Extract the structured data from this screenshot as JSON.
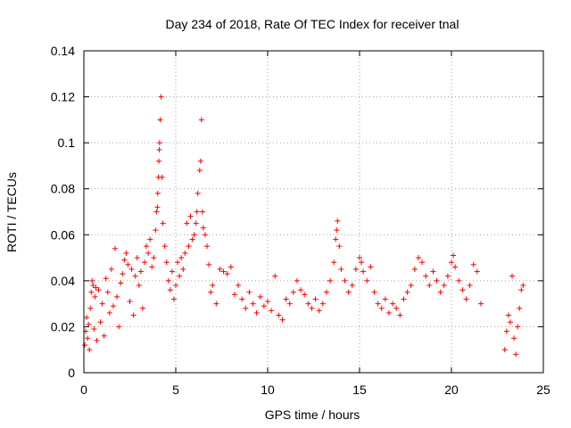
{
  "chart_data": {
    "type": "scatter",
    "title": "Day 234 of 2018, Rate Of TEC Index for receiver tnal",
    "xlabel": "GPS time / hours",
    "ylabel": "ROTI / TECUs",
    "xlim": [
      0,
      25
    ],
    "ylim": [
      0,
      0.14
    ],
    "grid": true,
    "xticks": [
      {
        "value": 0,
        "label": "0"
      },
      {
        "value": 5,
        "label": "5"
      },
      {
        "value": 10,
        "label": "10"
      },
      {
        "value": 15,
        "label": "15"
      },
      {
        "value": 20,
        "label": "20"
      },
      {
        "value": 25,
        "label": "25"
      }
    ],
    "yticks": [
      {
        "value": 0,
        "label": "0"
      },
      {
        "value": 0.02,
        "label": "0.02"
      },
      {
        "value": 0.04,
        "label": "0.04"
      },
      {
        "value": 0.06,
        "label": "0.06"
      },
      {
        "value": 0.08,
        "label": "0.08"
      },
      {
        "value": 0.1,
        "label": "0.1"
      },
      {
        "value": 0.12,
        "label": "0.12"
      },
      {
        "value": 0.14,
        "label": "0.14"
      }
    ],
    "series": [
      {
        "name": "ROTI",
        "marker": "plus",
        "color": "#ff0000",
        "points": [
          [
            0.05,
            0.012
          ],
          [
            0.1,
            0.018
          ],
          [
            0.15,
            0.024
          ],
          [
            0.2,
            0.015
          ],
          [
            0.25,
            0.021
          ],
          [
            0.3,
            0.01
          ],
          [
            0.35,
            0.028
          ],
          [
            0.4,
            0.035
          ],
          [
            0.45,
            0.04
          ],
          [
            0.5,
            0.038
          ],
          [
            0.55,
            0.019
          ],
          [
            0.6,
            0.033
          ],
          [
            0.65,
            0.037
          ],
          [
            0.7,
            0.014
          ],
          [
            0.8,
            0.036
          ],
          [
            0.9,
            0.022
          ],
          [
            1.0,
            0.03
          ],
          [
            1.1,
            0.016
          ],
          [
            1.2,
            0.041
          ],
          [
            1.3,
            0.035
          ],
          [
            1.4,
            0.026
          ],
          [
            1.5,
            0.045
          ],
          [
            1.6,
            0.029
          ],
          [
            1.7,
            0.054
          ],
          [
            1.8,
            0.033
          ],
          [
            1.9,
            0.02
          ],
          [
            2.0,
            0.039
          ],
          [
            2.1,
            0.043
          ],
          [
            2.2,
            0.049
          ],
          [
            2.3,
            0.052
          ],
          [
            2.4,
            0.047
          ],
          [
            2.5,
            0.031
          ],
          [
            2.6,
            0.045
          ],
          [
            2.7,
            0.025
          ],
          [
            2.8,
            0.042
          ],
          [
            2.9,
            0.05
          ],
          [
            3.0,
            0.038
          ],
          [
            3.1,
            0.044
          ],
          [
            3.2,
            0.028
          ],
          [
            3.3,
            0.048
          ],
          [
            3.4,
            0.055
          ],
          [
            3.5,
            0.052
          ],
          [
            3.6,
            0.058
          ],
          [
            3.7,
            0.046
          ],
          [
            3.8,
            0.05
          ],
          [
            3.9,
            0.062
          ],
          [
            3.95,
            0.07
          ],
          [
            4.0,
            0.072
          ],
          [
            4.02,
            0.078
          ],
          [
            4.05,
            0.085
          ],
          [
            4.08,
            0.092
          ],
          [
            4.1,
            0.097
          ],
          [
            4.12,
            0.1
          ],
          [
            4.15,
            0.11
          ],
          [
            4.2,
            0.12
          ],
          [
            4.25,
            0.085
          ],
          [
            4.3,
            0.065
          ],
          [
            4.4,
            0.055
          ],
          [
            4.5,
            0.048
          ],
          [
            4.6,
            0.04
          ],
          [
            4.7,
            0.036
          ],
          [
            4.8,
            0.044
          ],
          [
            4.9,
            0.032
          ],
          [
            5.0,
            0.038
          ],
          [
            5.1,
            0.048
          ],
          [
            5.2,
            0.042
          ],
          [
            5.3,
            0.05
          ],
          [
            5.4,
            0.045
          ],
          [
            5.5,
            0.052
          ],
          [
            5.6,
            0.065
          ],
          [
            5.7,
            0.055
          ],
          [
            5.8,
            0.068
          ],
          [
            5.9,
            0.058
          ],
          [
            6.0,
            0.06
          ],
          [
            6.1,
            0.065
          ],
          [
            6.15,
            0.07
          ],
          [
            6.2,
            0.078
          ],
          [
            6.3,
            0.088
          ],
          [
            6.35,
            0.092
          ],
          [
            6.4,
            0.11
          ],
          [
            6.45,
            0.07
          ],
          [
            6.5,
            0.063
          ],
          [
            6.6,
            0.06
          ],
          [
            6.7,
            0.055
          ],
          [
            6.8,
            0.047
          ],
          [
            6.9,
            0.035
          ],
          [
            7.0,
            0.038
          ],
          [
            7.2,
            0.03
          ],
          [
            7.4,
            0.045
          ],
          [
            7.6,
            0.044
          ],
          [
            7.8,
            0.043
          ],
          [
            8.0,
            0.046
          ],
          [
            8.2,
            0.034
          ],
          [
            8.4,
            0.038
          ],
          [
            8.6,
            0.032
          ],
          [
            8.8,
            0.028
          ],
          [
            9.0,
            0.035
          ],
          [
            9.2,
            0.03
          ],
          [
            9.4,
            0.026
          ],
          [
            9.6,
            0.033
          ],
          [
            9.8,
            0.029
          ],
          [
            10.0,
            0.031
          ],
          [
            10.2,
            0.027
          ],
          [
            10.4,
            0.042
          ],
          [
            10.6,
            0.025
          ],
          [
            10.8,
            0.023
          ],
          [
            11.0,
            0.032
          ],
          [
            11.2,
            0.03
          ],
          [
            11.4,
            0.035
          ],
          [
            11.6,
            0.04
          ],
          [
            11.8,
            0.036
          ],
          [
            12.0,
            0.034
          ],
          [
            12.2,
            0.03
          ],
          [
            12.4,
            0.028
          ],
          [
            12.6,
            0.032
          ],
          [
            12.8,
            0.027
          ],
          [
            13.0,
            0.03
          ],
          [
            13.2,
            0.035
          ],
          [
            13.4,
            0.04
          ],
          [
            13.6,
            0.048
          ],
          [
            13.7,
            0.058
          ],
          [
            13.75,
            0.062
          ],
          [
            13.8,
            0.066
          ],
          [
            13.9,
            0.055
          ],
          [
            14.0,
            0.045
          ],
          [
            14.2,
            0.04
          ],
          [
            14.4,
            0.035
          ],
          [
            14.6,
            0.038
          ],
          [
            14.8,
            0.045
          ],
          [
            15.0,
            0.05
          ],
          [
            15.1,
            0.048
          ],
          [
            15.2,
            0.044
          ],
          [
            15.4,
            0.04
          ],
          [
            15.6,
            0.046
          ],
          [
            15.8,
            0.035
          ],
          [
            16.0,
            0.03
          ],
          [
            16.2,
            0.028
          ],
          [
            16.4,
            0.032
          ],
          [
            16.6,
            0.026
          ],
          [
            16.8,
            0.03
          ],
          [
            17.0,
            0.028
          ],
          [
            17.2,
            0.025
          ],
          [
            17.4,
            0.032
          ],
          [
            17.6,
            0.035
          ],
          [
            17.8,
            0.038
          ],
          [
            18.0,
            0.045
          ],
          [
            18.2,
            0.05
          ],
          [
            18.4,
            0.048
          ],
          [
            18.6,
            0.042
          ],
          [
            18.8,
            0.038
          ],
          [
            19.0,
            0.044
          ],
          [
            19.2,
            0.04
          ],
          [
            19.4,
            0.035
          ],
          [
            19.6,
            0.038
          ],
          [
            19.8,
            0.042
          ],
          [
            20.0,
            0.048
          ],
          [
            20.1,
            0.051
          ],
          [
            20.2,
            0.046
          ],
          [
            20.4,
            0.04
          ],
          [
            20.6,
            0.036
          ],
          [
            20.8,
            0.032
          ],
          [
            21.0,
            0.038
          ],
          [
            21.2,
            0.047
          ],
          [
            21.4,
            0.044
          ],
          [
            21.6,
            0.03
          ],
          [
            22.9,
            0.01
          ],
          [
            23.0,
            0.018
          ],
          [
            23.1,
            0.025
          ],
          [
            23.2,
            0.022
          ],
          [
            23.3,
            0.042
          ],
          [
            23.4,
            0.015
          ],
          [
            23.5,
            0.008
          ],
          [
            23.6,
            0.02
          ],
          [
            23.7,
            0.028
          ],
          [
            23.8,
            0.036
          ],
          [
            23.9,
            0.038
          ]
        ]
      }
    ]
  }
}
